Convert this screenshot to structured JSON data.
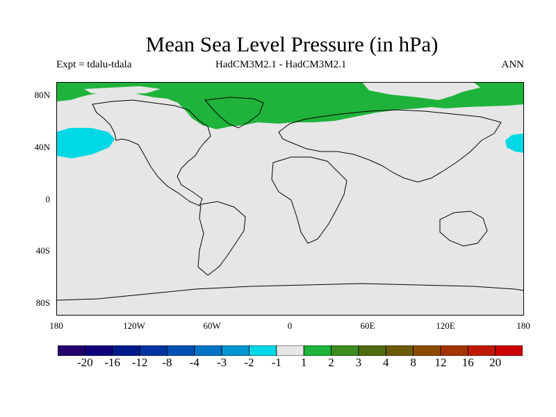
{
  "title": "Mean Sea Level Pressure (in hPa)",
  "experiment": "Expt = tdalu-tdala",
  "models": "HadCM3M2.1 - HadCM3M2.1",
  "season": "ANN",
  "lat_ticks": [
    "80N",
    "40N",
    "0",
    "40S",
    "80S"
  ],
  "lon_ticks": [
    "180",
    "120W",
    "60W",
    "0",
    "60E",
    "120E",
    "180"
  ],
  "colors": {
    "background_field": "#e6e6e6",
    "positive_1_2": "#1fb33c",
    "negative_2_1": "#00d8e6",
    "coastline": "#000000"
  },
  "colorbar": {
    "colors": [
      "#24006b",
      "#10007a",
      "#001a8c",
      "#0033a0",
      "#0051b4",
      "#0073c4",
      "#0096d1",
      "#00d8e6",
      "#e6e6e6",
      "#1fb33c",
      "#3c8e1e",
      "#4d6b0f",
      "#6b5a08",
      "#8c4a00",
      "#a53300",
      "#bf1a00",
      "#cc0000"
    ],
    "labels": [
      "-20",
      "-16",
      "-12",
      "-8",
      "-4",
      "-3",
      "-2",
      "-1",
      "1",
      "2",
      "3",
      "4",
      "8",
      "12",
      "16",
      "20"
    ]
  }
}
